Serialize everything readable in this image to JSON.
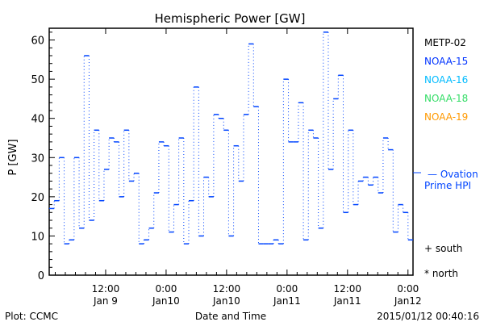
{
  "chart_data": {
    "type": "line",
    "title": "Hemispheric Power [GW]",
    "ylabel": "P [GW]",
    "xlabel": "Date and Time",
    "ylim": [
      0,
      63
    ],
    "yticks": [
      0,
      10,
      20,
      30,
      40,
      50,
      60
    ],
    "xticks": [
      {
        "label1": "12:00",
        "label2": "Jan 9",
        "hours": 11.2
      },
      {
        "label1": "0:00",
        "label2": "Jan10",
        "hours": 23.2
      },
      {
        "label1": "12:00",
        "label2": "Jan10",
        "hours": 35.2
      },
      {
        "label1": "0:00",
        "label2": "Jan11",
        "hours": 47.2
      },
      {
        "label1": "12:00",
        "label2": "Jan11",
        "hours": 59.2
      },
      {
        "label1": "0:00",
        "label2": "Jan12",
        "hours": 71.2
      }
    ],
    "xrange_hours": [
      0,
      72.2
    ],
    "series": [
      {
        "name": "NOAA-15",
        "color": "#0044ff",
        "values": [
          17,
          19,
          30,
          8,
          9,
          30,
          12,
          56,
          14,
          37,
          19,
          27,
          35,
          34,
          20,
          37,
          24,
          26,
          8,
          9,
          12,
          21,
          34,
          33,
          11,
          18,
          35,
          8,
          19,
          48,
          10,
          25,
          20,
          41,
          40,
          37,
          10,
          33,
          24,
          41,
          59,
          43,
          8,
          8,
          8,
          9,
          8,
          50,
          34,
          34,
          44,
          9,
          37,
          35,
          12,
          62,
          27,
          45,
          51,
          16,
          37,
          18,
          24,
          25,
          23,
          25,
          21,
          35,
          32,
          11,
          18,
          16,
          9
        ]
      }
    ],
    "legend": [
      {
        "label": "METP-02",
        "color": "#000000"
      },
      {
        "label": "NOAA-15",
        "color": "#0033ff"
      },
      {
        "label": "NOAA-16",
        "color": "#00bbff"
      },
      {
        "label": "NOAA-18",
        "color": "#33dd66"
      },
      {
        "label": "NOAA-19",
        "color": "#ff9900"
      }
    ],
    "ovation": {
      "label1": "— Ovation",
      "label2": "Prime HPI",
      "value": 26,
      "color": "#0044ff"
    },
    "markers": {
      "south": "+ south",
      "north": "* north"
    },
    "footer": {
      "left": "Plot: CCMC",
      "right": "2015/01/12 00:40:16"
    }
  }
}
